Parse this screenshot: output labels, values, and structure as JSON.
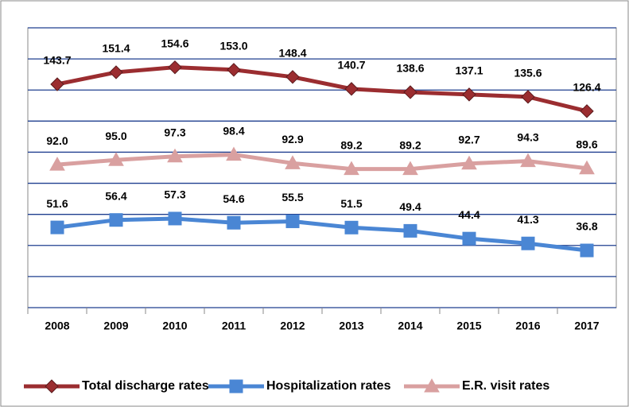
{
  "chart_data": {
    "type": "line",
    "categories": [
      "2008",
      "2009",
      "2010",
      "2011",
      "2012",
      "2013",
      "2014",
      "2015",
      "2016",
      "2017"
    ],
    "series": [
      {
        "name": "Total discharge rates",
        "color": "#9b2d30",
        "marker": "diamond",
        "values": [
          143.7,
          151.4,
          154.6,
          153.0,
          148.4,
          140.7,
          138.6,
          137.1,
          135.6,
          126.4
        ],
        "value_labels": [
          "143.7",
          "151.4",
          "154.6",
          "153.0",
          "148.4",
          "140.7",
          "138.6",
          "137.1",
          "135.6",
          "126.4"
        ]
      },
      {
        "name": "Hospitalization rates",
        "color": "#4a86d4",
        "marker": "square",
        "values": [
          51.6,
          56.4,
          57.3,
          54.6,
          55.5,
          51.5,
          49.4,
          44.4,
          41.3,
          36.8
        ],
        "value_labels": [
          "51.6",
          "56.4",
          "57.3",
          "54.6",
          "55.5",
          "51.5",
          "49.4",
          "44.4",
          "41.3",
          "36.8"
        ]
      },
      {
        "name": "E.R. visit rates",
        "color": "#d9a0a0",
        "marker": "triangle",
        "values": [
          92.0,
          95.0,
          97.3,
          98.4,
          92.9,
          89.2,
          89.2,
          92.7,
          94.3,
          89.6
        ],
        "value_labels": [
          "92.0",
          "95.0",
          "97.3",
          "98.4",
          "92.9",
          "89.2",
          "89.2",
          "92.7",
          "94.3",
          "89.6"
        ]
      }
    ],
    "ylim": [
      0,
      180
    ],
    "yticks": [
      0,
      20,
      40,
      60,
      80,
      100,
      120,
      140,
      160,
      180
    ],
    "grid": true,
    "legend": "bottom"
  }
}
